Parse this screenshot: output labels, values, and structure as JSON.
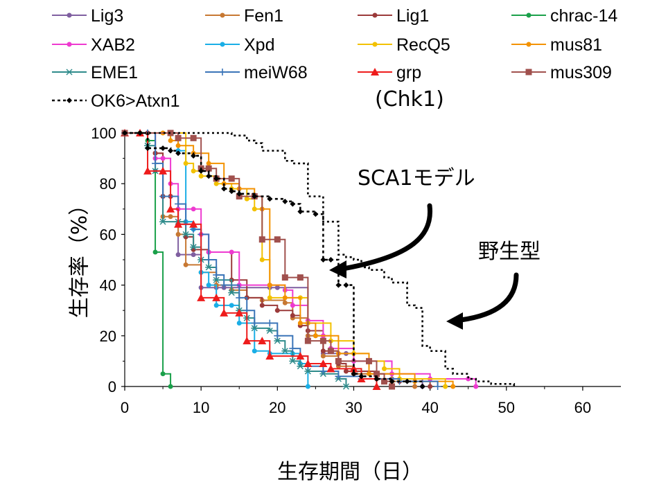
{
  "chart_data": {
    "type": "line",
    "xlabel": "生存期間（日）",
    "ylabel": "生存率（%）",
    "xlim": [
      0,
      65
    ],
    "ylim": [
      0,
      100
    ],
    "xticks": [
      0,
      10,
      20,
      30,
      40,
      50,
      60
    ],
    "yticks": [
      0,
      20,
      40,
      60,
      80,
      100
    ],
    "grid": false,
    "legend_position": "top",
    "annotations": [
      "(Chk1)",
      "SCA1モデル",
      "野生型"
    ],
    "series": [
      {
        "name": "Lig3",
        "color": "#7F5FA0",
        "marker": "circle",
        "dash": "",
        "points": [
          [
            0,
            100
          ],
          [
            3,
            100
          ],
          [
            4,
            85
          ],
          [
            5,
            75
          ],
          [
            6,
            75
          ],
          [
            7,
            52
          ],
          [
            9,
            52
          ],
          [
            10,
            39
          ],
          [
            12,
            39
          ],
          [
            13,
            39
          ],
          [
            19,
            39
          ],
          [
            20,
            39
          ],
          [
            24,
            20
          ],
          [
            25,
            20
          ],
          [
            26,
            13
          ],
          [
            29,
            13
          ],
          [
            30,
            5
          ],
          [
            35,
            3
          ],
          [
            39,
            0
          ]
        ]
      },
      {
        "name": "Fen1",
        "color": "#C77832",
        "marker": "circle",
        "dash": "",
        "points": [
          [
            0,
            100
          ],
          [
            4,
            92
          ],
          [
            5,
            67
          ],
          [
            6,
            67
          ],
          [
            7,
            60
          ],
          [
            8,
            48
          ],
          [
            10,
            45
          ],
          [
            12,
            40
          ],
          [
            14,
            38
          ],
          [
            16,
            35
          ],
          [
            18,
            34
          ],
          [
            21,
            33
          ],
          [
            22,
            27
          ],
          [
            24,
            20
          ],
          [
            26,
            12
          ],
          [
            28,
            8
          ],
          [
            30,
            5
          ],
          [
            35,
            2
          ],
          [
            38,
            0
          ]
        ]
      },
      {
        "name": "Lig1",
        "color": "#9B3A3A",
        "marker": "circle",
        "dash": "",
        "points": [
          [
            0,
            100
          ],
          [
            3,
            100
          ],
          [
            4,
            92
          ],
          [
            5,
            75
          ],
          [
            6,
            75
          ],
          [
            7,
            64
          ],
          [
            8,
            59
          ],
          [
            9,
            54
          ],
          [
            11,
            53
          ],
          [
            14,
            42
          ],
          [
            16,
            35
          ],
          [
            18,
            32
          ],
          [
            20,
            30
          ],
          [
            22,
            28
          ],
          [
            23,
            24
          ],
          [
            24,
            22
          ],
          [
            26,
            14
          ],
          [
            28,
            9
          ],
          [
            29,
            6
          ],
          [
            33,
            3
          ],
          [
            36,
            2
          ],
          [
            40,
            0
          ]
        ]
      },
      {
        "name": "chrac-14",
        "color": "#1AA04A",
        "marker": "circle",
        "dash": "",
        "points": [
          [
            0,
            100
          ],
          [
            2,
            100
          ],
          [
            3,
            97
          ],
          [
            4,
            53
          ],
          [
            5,
            5
          ],
          [
            6,
            0
          ]
        ]
      },
      {
        "name": "XAB2",
        "color": "#EE3AD0",
        "marker": "circle",
        "dash": "",
        "points": [
          [
            0,
            100
          ],
          [
            4,
            90
          ],
          [
            5,
            90
          ],
          [
            6,
            80
          ],
          [
            7,
            70
          ],
          [
            9,
            70
          ],
          [
            10,
            60
          ],
          [
            11,
            53
          ],
          [
            14,
            53
          ],
          [
            15,
            40
          ],
          [
            19,
            40
          ],
          [
            21,
            38
          ],
          [
            22,
            32
          ],
          [
            24,
            26
          ],
          [
            26,
            20
          ],
          [
            27,
            15
          ],
          [
            30,
            10
          ],
          [
            35,
            5
          ],
          [
            40,
            3
          ],
          [
            45,
            3
          ],
          [
            46,
            0
          ]
        ]
      },
      {
        "name": "Xpd",
        "color": "#1AAEE6",
        "marker": "circle",
        "dash": "",
        "points": [
          [
            0,
            100
          ],
          [
            6,
            100
          ],
          [
            7,
            93
          ],
          [
            8,
            65
          ],
          [
            9,
            62
          ],
          [
            10,
            45
          ],
          [
            11,
            40
          ],
          [
            12,
            32
          ],
          [
            14,
            32
          ],
          [
            15,
            25
          ],
          [
            17,
            14
          ],
          [
            19,
            13
          ],
          [
            22,
            13
          ],
          [
            23,
            9
          ],
          [
            24,
            0
          ]
        ]
      },
      {
        "name": "RecQ5",
        "color": "#F2C100",
        "marker": "circle",
        "dash": "",
        "points": [
          [
            0,
            100
          ],
          [
            6,
            100
          ],
          [
            8,
            88
          ],
          [
            9,
            85
          ],
          [
            10,
            83
          ],
          [
            12,
            80
          ],
          [
            14,
            78
          ],
          [
            16,
            74
          ],
          [
            17,
            70
          ],
          [
            18,
            50
          ],
          [
            19,
            35
          ],
          [
            23,
            35
          ],
          [
            24,
            25
          ],
          [
            27,
            18
          ],
          [
            30,
            13
          ],
          [
            32,
            10
          ],
          [
            34,
            7
          ],
          [
            36,
            3
          ],
          [
            42,
            0
          ]
        ]
      },
      {
        "name": "mus81",
        "color": "#F39200",
        "marker": "circle",
        "dash": "",
        "points": [
          [
            0,
            100
          ],
          [
            5,
            100
          ],
          [
            6,
            97
          ],
          [
            7,
            95
          ],
          [
            9,
            92
          ],
          [
            11,
            88
          ],
          [
            13,
            80
          ],
          [
            15,
            78
          ],
          [
            17,
            75
          ],
          [
            18,
            70
          ],
          [
            19,
            40
          ],
          [
            21,
            35
          ],
          [
            23,
            25
          ],
          [
            25,
            20
          ],
          [
            28,
            13
          ],
          [
            32,
            5
          ],
          [
            38,
            2
          ],
          [
            43,
            0
          ]
        ]
      },
      {
        "name": "EME1",
        "color": "#2E8B8B",
        "marker": "asterisk",
        "dash": "",
        "points": [
          [
            0,
            100
          ],
          [
            3,
            95
          ],
          [
            4,
            85
          ],
          [
            5,
            65
          ],
          [
            7,
            65
          ],
          [
            8,
            60
          ],
          [
            9,
            55
          ],
          [
            10,
            50
          ],
          [
            11,
            47
          ],
          [
            12,
            42
          ],
          [
            14,
            37
          ],
          [
            15,
            30
          ],
          [
            16,
            27
          ],
          [
            17,
            23
          ],
          [
            19,
            22
          ],
          [
            20,
            18
          ],
          [
            21,
            14
          ],
          [
            22,
            10
          ],
          [
            23,
            8
          ],
          [
            24,
            6
          ],
          [
            26,
            5
          ],
          [
            28,
            3
          ],
          [
            29,
            0
          ]
        ]
      },
      {
        "name": "meiW68",
        "color": "#3A74B8",
        "marker": "plus",
        "dash": "",
        "points": [
          [
            0,
            100
          ],
          [
            3,
            100
          ],
          [
            4,
            88
          ],
          [
            5,
            75
          ],
          [
            7,
            72
          ],
          [
            8,
            64
          ],
          [
            9,
            62
          ],
          [
            10,
            60
          ],
          [
            11,
            50
          ],
          [
            12,
            44
          ],
          [
            13,
            40
          ],
          [
            15,
            35
          ],
          [
            16,
            30
          ],
          [
            17,
            25
          ],
          [
            19,
            25
          ],
          [
            20,
            20
          ],
          [
            22,
            15
          ],
          [
            23,
            12
          ],
          [
            24,
            8
          ],
          [
            26,
            6
          ],
          [
            28,
            4
          ],
          [
            31,
            3
          ],
          [
            36,
            2
          ],
          [
            41,
            0
          ]
        ]
      },
      {
        "name": "grp",
        "color": "#EE1C1C",
        "marker": "triangle",
        "dash": "",
        "points": [
          [
            0,
            100
          ],
          [
            2,
            100
          ],
          [
            3,
            85
          ],
          [
            5,
            85
          ],
          [
            6,
            70
          ],
          [
            7,
            64
          ],
          [
            9,
            64
          ],
          [
            10,
            35
          ],
          [
            12,
            35
          ],
          [
            13,
            29
          ],
          [
            15,
            29
          ],
          [
            16,
            18
          ],
          [
            18,
            18
          ],
          [
            19,
            12
          ],
          [
            23,
            12
          ],
          [
            24,
            9
          ],
          [
            26,
            9
          ],
          [
            27,
            7
          ],
          [
            30,
            7
          ],
          [
            31,
            3
          ],
          [
            33,
            0
          ]
        ]
      },
      {
        "name": "mus309",
        "color": "#A0504D",
        "marker": "square",
        "dash": "",
        "points": [
          [
            0,
            100
          ],
          [
            6,
            100
          ],
          [
            7,
            98
          ],
          [
            9,
            98
          ],
          [
            10,
            86
          ],
          [
            11,
            86
          ],
          [
            12,
            82
          ],
          [
            14,
            82
          ],
          [
            15,
            75
          ],
          [
            17,
            75
          ],
          [
            18,
            58
          ],
          [
            20,
            58
          ],
          [
            21,
            43
          ],
          [
            23,
            43
          ],
          [
            24,
            18
          ],
          [
            26,
            18
          ],
          [
            27,
            14
          ],
          [
            28,
            10
          ],
          [
            32,
            10
          ],
          [
            33,
            5
          ],
          [
            34,
            2
          ],
          [
            35,
            0
          ]
        ]
      },
      {
        "name": "OK6>Atxn1",
        "color": "#000000",
        "marker": "diamond",
        "dash": "4,4",
        "points": [
          [
            0,
            100
          ],
          [
            2,
            100
          ],
          [
            3,
            94
          ],
          [
            5,
            94
          ],
          [
            6,
            93
          ],
          [
            7,
            92
          ],
          [
            9,
            91
          ],
          [
            10,
            85
          ],
          [
            11,
            83
          ],
          [
            12,
            82
          ],
          [
            13,
            78
          ],
          [
            14,
            77
          ],
          [
            15,
            76
          ],
          [
            17,
            75
          ],
          [
            19,
            74
          ],
          [
            21,
            73
          ],
          [
            22,
            72
          ],
          [
            23,
            69
          ],
          [
            25,
            68
          ],
          [
            26,
            50
          ],
          [
            27,
            50
          ],
          [
            28,
            40
          ],
          [
            29,
            40
          ],
          [
            30,
            5
          ],
          [
            31,
            4
          ],
          [
            33,
            3
          ],
          [
            35,
            2
          ],
          [
            37,
            2
          ],
          [
            39,
            0
          ]
        ]
      },
      {
        "name": "",
        "color": "#000000",
        "marker": "none",
        "dash": "3,4",
        "points": [
          [
            0,
            100
          ],
          [
            9,
            100
          ],
          [
            13,
            100
          ],
          [
            14,
            99
          ],
          [
            15,
            99
          ],
          [
            16,
            97
          ],
          [
            17,
            96
          ],
          [
            18,
            93
          ],
          [
            19,
            93
          ],
          [
            20,
            93
          ],
          [
            21,
            89
          ],
          [
            22,
            88
          ],
          [
            23,
            88
          ],
          [
            24,
            75
          ],
          [
            25,
            75
          ],
          [
            26,
            65
          ],
          [
            27,
            65
          ],
          [
            28,
            52
          ],
          [
            29,
            51
          ],
          [
            30,
            50
          ],
          [
            31,
            47
          ],
          [
            32,
            46
          ],
          [
            33,
            46
          ],
          [
            34,
            43
          ],
          [
            35,
            41
          ],
          [
            36,
            41
          ],
          [
            37,
            32
          ],
          [
            38,
            31
          ],
          [
            39,
            16
          ],
          [
            40,
            14
          ],
          [
            41,
            14
          ],
          [
            42,
            7
          ],
          [
            43,
            5
          ],
          [
            44,
            5
          ],
          [
            45,
            3
          ],
          [
            46,
            2
          ],
          [
            47,
            2
          ],
          [
            48,
            1
          ],
          [
            49,
            1
          ],
          [
            51,
            0
          ]
        ]
      }
    ]
  }
}
